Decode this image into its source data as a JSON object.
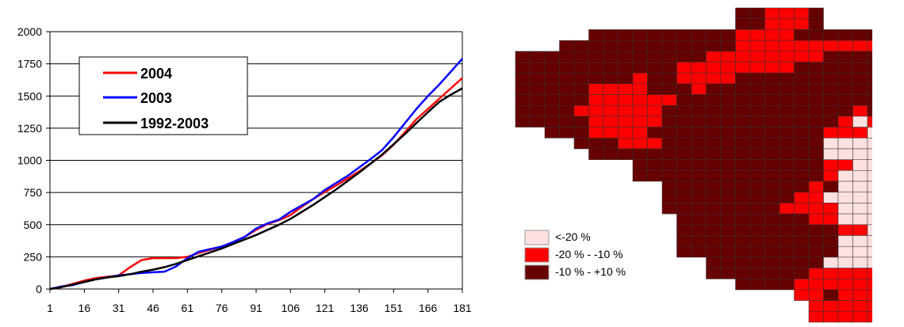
{
  "chart_data": [
    {
      "type": "line",
      "title": "",
      "xlabel": "",
      "ylabel": "",
      "xlim": [
        1,
        181
      ],
      "ylim": [
        0,
        2000
      ],
      "grid": "horizontal",
      "legend_position": "top-left",
      "x_ticks": [
        "1",
        "16",
        "31",
        "46",
        "61",
        "76",
        "91",
        "106",
        "121",
        "136",
        "151",
        "166",
        "181"
      ],
      "y_ticks": [
        "0",
        "250",
        "500",
        "750",
        "1000",
        "1250",
        "1500",
        "1750",
        "2000"
      ],
      "series": [
        {
          "name": "2004",
          "color": "#ff0000",
          "x": [
            1,
            6,
            11,
            16,
            21,
            26,
            31,
            36,
            41,
            46,
            51,
            56,
            61,
            66,
            71,
            76,
            81,
            86,
            91,
            96,
            101,
            106,
            111,
            116,
            121,
            126,
            131,
            136,
            141,
            146,
            151,
            156,
            161,
            166,
            171,
            176,
            181
          ],
          "y": [
            0,
            15,
            40,
            65,
            85,
            95,
            105,
            170,
            225,
            240,
            240,
            240,
            250,
            280,
            305,
            330,
            365,
            405,
            460,
            505,
            535,
            575,
            640,
            700,
            755,
            805,
            860,
            915,
            975,
            1040,
            1120,
            1220,
            1320,
            1400,
            1480,
            1560,
            1640
          ]
        },
        {
          "name": "2003",
          "color": "#0000ff",
          "x": [
            1,
            6,
            11,
            16,
            21,
            26,
            31,
            36,
            41,
            46,
            51,
            56,
            61,
            66,
            71,
            76,
            81,
            86,
            91,
            96,
            101,
            106,
            111,
            116,
            121,
            126,
            131,
            136,
            141,
            146,
            151,
            156,
            161,
            166,
            171,
            176,
            181
          ],
          "y": [
            0,
            20,
            30,
            55,
            75,
            90,
            105,
            115,
            125,
            130,
            135,
            175,
            240,
            290,
            310,
            330,
            365,
            405,
            470,
            510,
            540,
            600,
            650,
            700,
            770,
            825,
            880,
            945,
            1010,
            1080,
            1180,
            1290,
            1400,
            1500,
            1590,
            1690,
            1790
          ]
        },
        {
          "name": "1992-2003",
          "color": "#000000",
          "x": [
            1,
            6,
            11,
            16,
            21,
            26,
            31,
            36,
            41,
            46,
            51,
            56,
            61,
            66,
            71,
            76,
            81,
            86,
            91,
            96,
            101,
            106,
            111,
            116,
            121,
            126,
            131,
            136,
            141,
            146,
            151,
            156,
            161,
            166,
            171,
            176,
            181
          ],
          "y": [
            0,
            15,
            35,
            55,
            75,
            90,
            100,
            115,
            135,
            150,
            170,
            195,
            225,
            255,
            285,
            315,
            350,
            385,
            420,
            460,
            500,
            545,
            600,
            655,
            715,
            775,
            840,
            905,
            975,
            1045,
            1125,
            1205,
            1290,
            1375,
            1455,
            1510,
            1560
          ]
        }
      ]
    },
    {
      "type": "heatmap",
      "title": "",
      "legend": [
        {
          "label": "<-20 %",
          "color": "#fde0e0"
        },
        {
          "label": "-20 % - -10 %",
          "color": "#ff0000"
        },
        {
          "label": "-10 % - +10 %",
          "color": "#660000"
        }
      ],
      "grid_rows": [
        "...............ttmmmt....................",
        "...............ttmmmt....................",
        ".....ttttttttttmmmmtttttttt.............",
        "...ttttttttttttmmmmmmmmmmttttt..........",
        "tttttttttttttmmmmmmmmtttttttttt.........",
        "tttttttttttmmmmmmmmtttttttttttt.........",
        "ttttttttmttmmmmttttttttttttttt..........",
        "tttttmmmmtttmttttttttttttttttt..........",
        "tttttmmmmmmtttttttttttttttttt...........",
        "ttttmmmmmmtttttttttttttmttmmlll.........",
        "tttttmmmmmttttttttttttmlmmmllllll.......",
        "..tttmmmmttttttttttttmmmllllllllm.......",
        "....tttmmmtttttttttttlllllllllllmmm.....",
        ".....ttttttttttttttttlllllllllllmmmm....",
        "........tttttttttttttmmllllllllllmmmm...",
        "........tttttttttttttmlllllllllllllmm...",
        "..........ttttttttttmtllllllllllllm.....",
        "..........tttttttttmmlllllllllllll......",
        "..........ttttttttmmmmllllllllllll......",
        "...........tttttttttmmllllllll..........",
        "...........tttttttttttmmllllll..........",
        "...........tttttttttttllllll............",
        "...........tttttttttttllllll............",
        ".............ttttttttlllllll............",
        ".............tttttttmmmmmmm.............",
        "...............ttttmmmmmmmm.............",
        "...................mmtmmmm..............",
        "....................mmmmmmm.............",
        "....................mmmmmm.............."
      ]
    }
  ]
}
